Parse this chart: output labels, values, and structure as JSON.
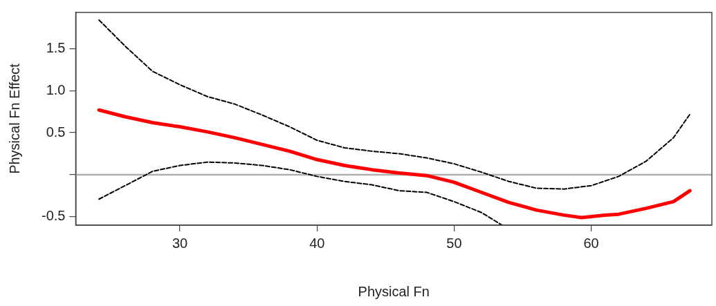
{
  "chart_data": {
    "type": "line",
    "xlabel": "Physical Fn",
    "ylabel": "Physical Fn Effect",
    "xlim": [
      22.4,
      68.8
    ],
    "ylim": [
      -0.6,
      1.93
    ],
    "xticks": [
      30,
      40,
      50,
      60
    ],
    "yticks": [
      -0.5,
      {
        "value": 0,
        "label": null
      },
      0.5,
      {
        "value": 1,
        "label": "1.0"
      },
      1.5
    ],
    "grid": false,
    "legend": false,
    "marker": "none",
    "line_style": "solid",
    "ref_lines": [
      {
        "axis": "y",
        "value": 0,
        "color": "#b0b0b0"
      }
    ],
    "series": [
      {
        "color": "#ff0000",
        "x": [
          24.1,
          26,
          28,
          30,
          32,
          34,
          36,
          38,
          40,
          42,
          44,
          46,
          48,
          50,
          52,
          54,
          56,
          58,
          59.3,
          61,
          62,
          64,
          66,
          67.2
        ],
        "values": [
          0.77,
          0.69,
          0.62,
          0.57,
          0.51,
          0.44,
          0.36,
          0.28,
          0.18,
          0.11,
          0.06,
          0.02,
          -0.01,
          -0.09,
          -0.21,
          -0.33,
          -0.42,
          -0.48,
          -0.51,
          -0.48,
          -0.47,
          -0.4,
          -0.32,
          -0.19
        ]
      },
      {
        "color": "#000000",
        "line_style": "dashed",
        "x": [
          24.1,
          26,
          28,
          30,
          32,
          34,
          36,
          38,
          40,
          42,
          44,
          46,
          48,
          50,
          52,
          54,
          56,
          58,
          60,
          62,
          64,
          66,
          67.2
        ],
        "values": [
          1.84,
          1.53,
          1.23,
          1.07,
          0.93,
          0.84,
          0.71,
          0.57,
          0.41,
          0.32,
          0.28,
          0.25,
          0.2,
          0.13,
          0.03,
          -0.08,
          -0.16,
          -0.17,
          -0.13,
          -0.02,
          0.16,
          0.44,
          0.72
        ]
      },
      {
        "color": "#000000",
        "line_style": "dashed",
        "x": [
          24.1,
          26,
          28,
          30,
          32,
          34,
          36,
          38,
          40,
          42,
          44,
          46,
          48,
          50,
          52,
          53.5
        ],
        "values": [
          -0.29,
          -0.13,
          0.04,
          0.11,
          0.15,
          0.14,
          0.11,
          0.06,
          -0.02,
          -0.08,
          -0.12,
          -0.19,
          -0.21,
          -0.32,
          -0.45,
          -0.6
        ]
      }
    ]
  }
}
